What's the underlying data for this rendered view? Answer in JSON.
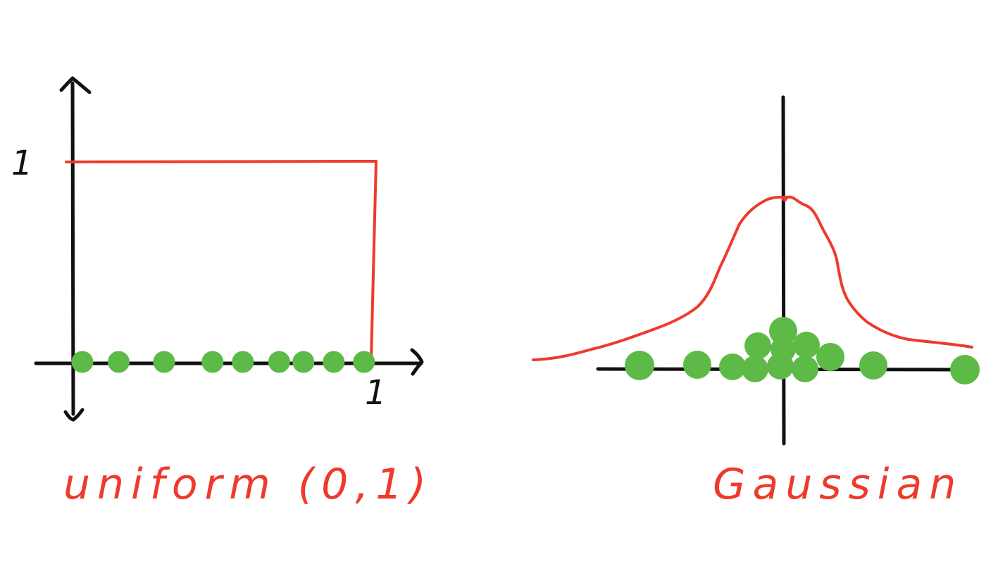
{
  "colors": {
    "axis": "#111111",
    "density_curve": "#ee3a2c",
    "sample_points": "#5dba47",
    "caption": "#ee3a2c"
  },
  "uniform_panel": {
    "caption": "uniform (0,1)",
    "y_tick_label": "1",
    "x_tick_label": "1",
    "density_value": 1,
    "support": [
      0,
      1
    ],
    "samples": [
      0.03,
      0.15,
      0.3,
      0.46,
      0.56,
      0.68,
      0.76,
      0.86,
      0.96
    ]
  },
  "gaussian_panel": {
    "caption": "Gaussian"
  }
}
